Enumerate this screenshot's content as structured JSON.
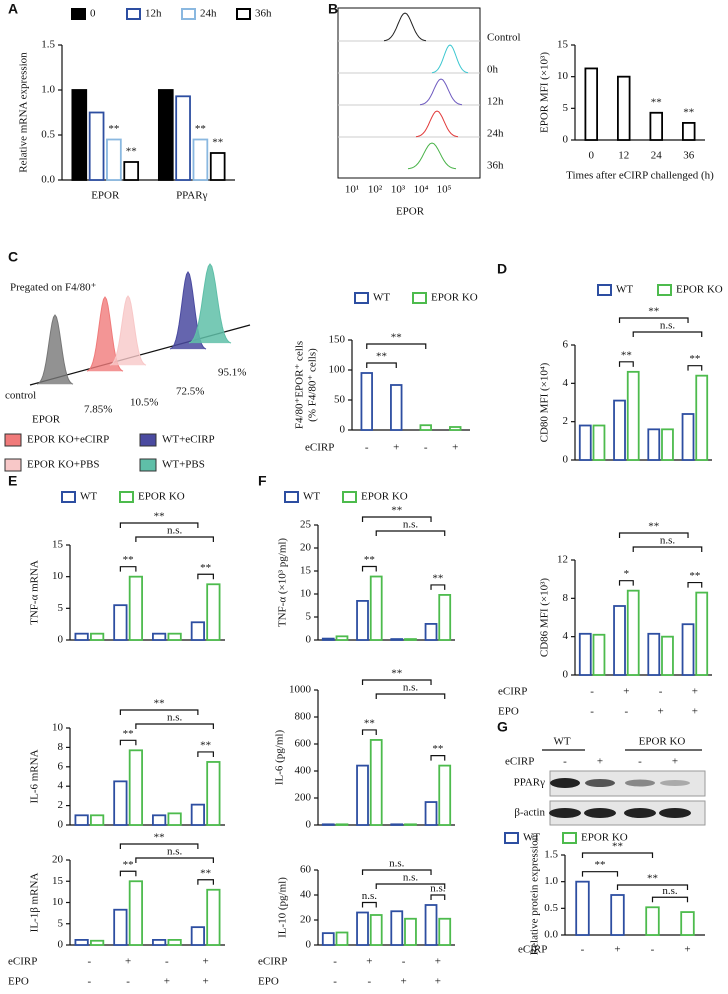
{
  "panels": [
    "A",
    "B",
    "C",
    "D",
    "E",
    "F",
    "G"
  ],
  "flow_b": {
    "labels": [
      "Control",
      "0h",
      "12h",
      "24h",
      "36h"
    ],
    "xticks": [
      "10¹",
      "10²",
      "10³",
      "10⁴",
      "10⁵"
    ],
    "xlabel": "EPOR"
  },
  "flow_c": {
    "header": "Pregated on F4/80⁺",
    "control": "control",
    "xlabel": "EPOR",
    "percents": [
      "95.1%",
      "72.5%",
      "10.5%",
      "7.85%"
    ],
    "legend": [
      {
        "name": "EPOR KO+eCIRP",
        "color": "#f07a7a"
      },
      {
        "name": "WT+eCIRP",
        "color": "#4a4aa0"
      },
      {
        "name": "EPOR KO+PBS",
        "color": "#f8c8c8"
      },
      {
        "name": "WT+PBS",
        "color": "#5fbfa8"
      }
    ]
  },
  "blot_g": {
    "groups": [
      "WT",
      "EPOR KO"
    ],
    "row": {
      "label": "eCIRP",
      "values": [
        "-",
        "+",
        "-",
        "+"
      ]
    },
    "bands": [
      "PPARγ",
      "β-actin"
    ]
  },
  "chart_data": [
    {
      "type": "bar",
      "ylabel": "Relative mRNA expression",
      "categories": [
        "EPOR",
        "PPARγ"
      ],
      "series": [
        {
          "name": "0",
          "color": "#000000",
          "fill": "#000000",
          "values": [
            1.0,
            1.0
          ]
        },
        {
          "name": "12h",
          "color": "#2d4ea1",
          "fill": "#ffffff",
          "values": [
            0.75,
            0.93
          ]
        },
        {
          "name": "24h",
          "color": "#8ab8e0",
          "fill": "#ffffff",
          "values": [
            0.45,
            0.45
          ]
        },
        {
          "name": "36h",
          "color": "#000000",
          "fill": "#ffffff",
          "values": [
            0.2,
            0.3
          ]
        }
      ],
      "ylim": [
        0,
        1.5
      ],
      "yticks": [
        {
          "value": 0,
          "label": "0.0"
        },
        {
          "value": 0.5,
          "label": "0.5"
        },
        {
          "value": 1,
          "label": "1.0"
        },
        {
          "value": 1.5,
          "label": "1.5"
        }
      ],
      "annotations": [
        "**",
        "**",
        "**",
        "**"
      ]
    },
    {
      "type": "bar",
      "ylabel": "EPOR MFI (×10³)",
      "xlabel": "Times after eCIRP challenged (h)",
      "categories": [
        "0",
        "12",
        "24",
        "36"
      ],
      "series": [
        {
          "color": "#000000",
          "fill": "#ffffff",
          "values": [
            11.3,
            10,
            4.3,
            2.7
          ]
        }
      ],
      "ylim": [
        0,
        15
      ],
      "yticks": [
        0,
        5,
        10,
        15
      ],
      "annotations": [
        "**",
        "**"
      ]
    },
    {
      "type": "bar",
      "ylabel": [
        "F4/80⁺EPOR⁺ cells",
        "(% F4/80⁺ cells)"
      ],
      "series": [
        {
          "name": "WT",
          "color": "#2d4ea1",
          "fill": "#ffffff",
          "values": [
            95,
            75,
            null,
            null
          ]
        },
        {
          "name": "EPOR KO",
          "color": "#4dbb4d",
          "fill": "#ffffff",
          "values": [
            null,
            null,
            8,
            5
          ]
        }
      ],
      "rows": [
        {
          "label": "eCIRP",
          "values": [
            "-",
            "+",
            "-",
            "+"
          ]
        }
      ],
      "ylim": [
        0,
        150
      ],
      "yticks": [
        0,
        50,
        100,
        150
      ],
      "annotations": [
        "**",
        "**"
      ]
    },
    {
      "type": "bar",
      "ylabel": "CD80 MFI (×10⁴)",
      "series": [
        {
          "name": "WT",
          "color": "#2d4ea1",
          "fill": "#ffffff",
          "values": [
            1.8,
            3.1,
            1.6,
            2.4
          ]
        },
        {
          "name": "EPOR KO",
          "color": "#4dbb4d",
          "fill": "#ffffff",
          "values": [
            1.8,
            4.6,
            1.6,
            4.4
          ]
        }
      ],
      "ylim": [
        0,
        6
      ],
      "yticks": [
        0,
        2,
        4,
        6
      ],
      "annotations": [
        "**",
        "n.s.",
        "**",
        "**"
      ]
    },
    {
      "type": "bar",
      "ylabel": "CD86 MFI (×10³)",
      "series": [
        {
          "color": "#2d4ea1",
          "fill": "#ffffff",
          "values": [
            4.3,
            7.2,
            4.3,
            5.3
          ]
        },
        {
          "color": "#4dbb4d",
          "fill": "#ffffff",
          "values": [
            4.2,
            8.8,
            4.0,
            8.6
          ]
        }
      ],
      "rows": [
        {
          "label": "eCIRP",
          "values": [
            "-",
            "+",
            "-",
            "+"
          ]
        },
        {
          "label": "EPO",
          "values": [
            "-",
            "-",
            "+",
            "+"
          ]
        }
      ],
      "ylim": [
        0,
        12
      ],
      "yticks": [
        0,
        4,
        8,
        12
      ],
      "annotations": [
        "**",
        "n.s.",
        "*",
        "**"
      ]
    },
    {
      "type": "bar",
      "ylabel": "TNF-α mRNA",
      "series": [
        {
          "name": "WT",
          "color": "#2d4ea1",
          "fill": "#ffffff",
          "values": [
            1,
            5.5,
            1,
            2.8
          ]
        },
        {
          "name": "EPOR KO",
          "color": "#4dbb4d",
          "fill": "#ffffff",
          "values": [
            1,
            10,
            1,
            8.8
          ]
        }
      ],
      "ylim": [
        0,
        15
      ],
      "yticks": [
        0,
        5,
        10,
        15
      ],
      "annotations": [
        "**",
        "n.s.",
        "**",
        "**"
      ]
    },
    {
      "type": "bar",
      "ylabel": "IL-6 mRNA",
      "series": [
        {
          "color": "#2d4ea1",
          "fill": "#ffffff",
          "values": [
            1,
            4.5,
            1,
            2.1
          ]
        },
        {
          "color": "#4dbb4d",
          "fill": "#ffffff",
          "values": [
            1,
            7.7,
            1.2,
            6.5
          ]
        }
      ],
      "ylim": [
        0,
        10
      ],
      "yticks": [
        0,
        2,
        4,
        6,
        8,
        10
      ],
      "annotations": [
        "**",
        "n.s.",
        "**",
        "**"
      ]
    },
    {
      "type": "bar",
      "ylabel": "IL-1β mRNA",
      "series": [
        {
          "color": "#2d4ea1",
          "fill": "#ffffff",
          "values": [
            1.2,
            8.3,
            1.2,
            4.2
          ]
        },
        {
          "color": "#4dbb4d",
          "fill": "#ffffff",
          "values": [
            1.0,
            15,
            1.2,
            13
          ]
        }
      ],
      "rows": [
        {
          "label": "eCIRP",
          "values": [
            "-",
            "+",
            "-",
            "+"
          ]
        },
        {
          "label": "EPO",
          "values": [
            "-",
            "-",
            "+",
            "+"
          ]
        }
      ],
      "ylim": [
        0,
        20
      ],
      "yticks": [
        0,
        5,
        10,
        15,
        20
      ],
      "annotations": [
        "**",
        "n.s.",
        "**",
        "**"
      ]
    },
    {
      "type": "bar",
      "ylabel": "TNF-α (×10³ pg/ml)",
      "series": [
        {
          "name": "WT",
          "color": "#2d4ea1",
          "fill": "#ffffff",
          "values": [
            0.3,
            8.5,
            0.2,
            3.5
          ]
        },
        {
          "name": "EPOR KO",
          "color": "#4dbb4d",
          "fill": "#ffffff",
          "values": [
            0.8,
            13.8,
            0.2,
            9.8
          ]
        }
      ],
      "ylim": [
        0,
        25
      ],
      "yticks": [
        0,
        5,
        10,
        15,
        20,
        25
      ],
      "annotations": [
        "**",
        "n.s.",
        "**",
        "**"
      ]
    },
    {
      "type": "bar",
      "ylabel": "IL-6 (pg/ml)",
      "series": [
        {
          "color": "#2d4ea1",
          "fill": "#ffffff",
          "values": [
            5,
            440,
            5,
            170
          ]
        },
        {
          "color": "#4dbb4d",
          "fill": "#ffffff",
          "values": [
            5,
            630,
            5,
            440
          ]
        }
      ],
      "ylim": [
        0,
        1000
      ],
      "yticks": [
        0,
        200,
        400,
        600,
        800,
        1000
      ],
      "annotations": [
        "**",
        "n.s.",
        "**",
        "**"
      ]
    },
    {
      "type": "bar",
      "ylabel": "IL-10 (pg/ml)",
      "series": [
        {
          "color": "#2d4ea1",
          "fill": "#ffffff",
          "values": [
            9.5,
            26,
            27,
            32
          ]
        },
        {
          "color": "#4dbb4d",
          "fill": "#ffffff",
          "values": [
            10,
            24,
            21,
            21
          ]
        }
      ],
      "rows": [
        {
          "label": "eCIRP",
          "values": [
            "-",
            "+",
            "-",
            "+"
          ]
        },
        {
          "label": "EPO",
          "values": [
            "-",
            "-",
            "+",
            "+"
          ]
        }
      ],
      "ylim": [
        0,
        60
      ],
      "yticks": [
        0,
        20,
        40,
        60
      ],
      "annotations": [
        "n.s.",
        "n.s.",
        "n.s.",
        "n.s."
      ]
    },
    {
      "type": "bar",
      "ylabel": "Relative protein expression",
      "series": [
        {
          "name": "WT",
          "color": "#2d4ea1",
          "fill": "#ffffff",
          "values": [
            1.0,
            0.75,
            null,
            null
          ]
        },
        {
          "name": "EPOR KO",
          "color": "#4dbb4d",
          "fill": "#ffffff",
          "values": [
            null,
            null,
            0.52,
            0.43
          ]
        }
      ],
      "rows": [
        {
          "label": "eCIRP",
          "values": [
            "-",
            "+",
            "-",
            "+"
          ]
        }
      ],
      "ylim": [
        0,
        1.5
      ],
      "yticks": [
        {
          "value": 0,
          "label": "0.0"
        },
        {
          "value": 0.5,
          "label": "0.5"
        },
        {
          "value": 1,
          "label": "1.0"
        },
        {
          "value": 1.5,
          "label": "1.5"
        }
      ],
      "annotations": [
        "**",
        "**",
        "**",
        "n.s."
      ]
    }
  ]
}
